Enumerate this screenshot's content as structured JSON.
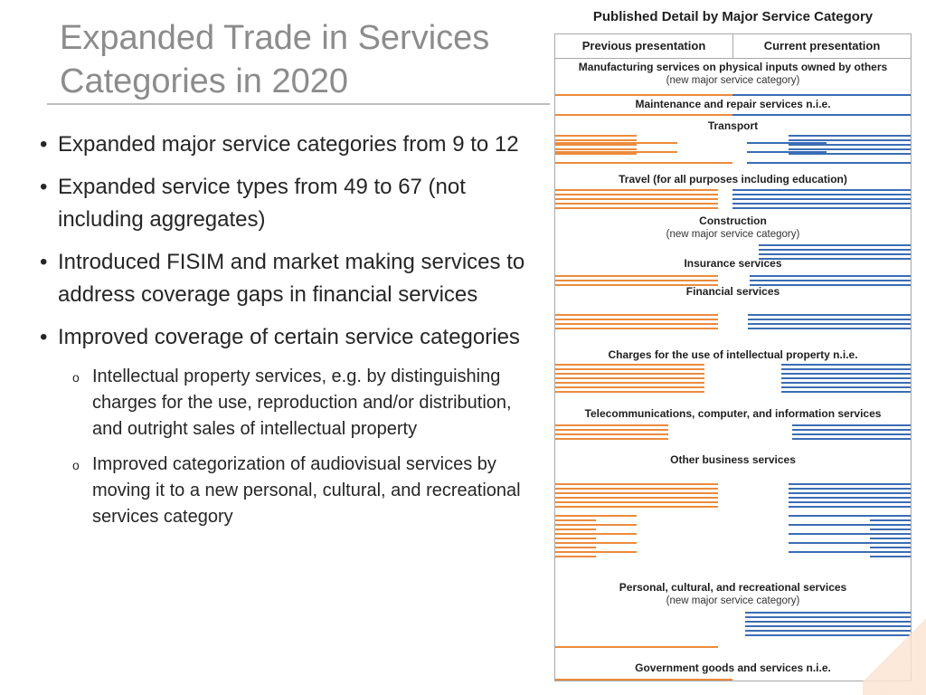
{
  "slide": {
    "title_line1": "Expanded Trade in Services",
    "title_line2": "Categories in 2020",
    "bullets": [
      "Expanded major service categories from 9 to 12",
      "Expanded service types from 49 to 67 (not including aggregates)",
      "Introduced FISIM and market making services to address coverage gaps in financial services",
      "Improved coverage of certain service categories"
    ],
    "sub_bullets": [
      "Intellectual property services, e.g. by distinguishing charges for the use, reproduction and/or distribution, and outright sales of intellectual property",
      "Improved categorization of audiovisual services by moving it to a new personal, cultural, and recreational services category"
    ],
    "bullet_marker": "•",
    "sub_bullet_marker": "o"
  },
  "diagram": {
    "title": "Published Detail by Major Service Category",
    "col_prev": "Previous presentation",
    "col_cur": "Current presentation",
    "colors": {
      "previous": "#ec8b3c",
      "current": "#3a6db5"
    },
    "categories": [
      {
        "name": "Manufacturing services on physical inputs owned by others",
        "note": "(new major service category)"
      },
      {
        "name": "Maintenance and repair services n.i.e.",
        "note": ""
      },
      {
        "name": "Transport",
        "note": ""
      },
      {
        "name": "Travel (for all purposes including education)",
        "note": ""
      },
      {
        "name": "Construction",
        "note": "(new major service category)"
      },
      {
        "name": "Insurance services",
        "note": ""
      },
      {
        "name": "Financial services",
        "note": ""
      },
      {
        "name": "Charges for the use of intellectual property n.i.e.",
        "note": ""
      },
      {
        "name": "Telecommunications, computer, and information services",
        "note": ""
      },
      {
        "name": "Other business services",
        "note": ""
      },
      {
        "name": "Personal, cultural, and recreational services",
        "note": "(new major service category)"
      },
      {
        "name": "Government goods and services n.i.e.",
        "note": ""
      }
    ]
  }
}
